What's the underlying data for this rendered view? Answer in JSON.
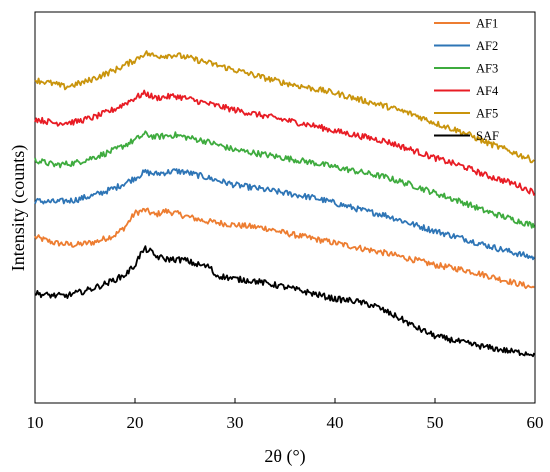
{
  "chart_data": {
    "type": "line",
    "xlabel": "2θ (°)",
    "ylabel": "Intensity (counts)",
    "xlim": [
      10,
      60
    ],
    "xticks": [
      10,
      20,
      30,
      40,
      50,
      60
    ],
    "y_tick_labels": false,
    "grid": false,
    "legend_position": "top-right",
    "y_units": "relative intensity with vertical stacking offsets (arbitrary units)",
    "series": [
      {
        "name": "AF1",
        "color": "#ED7D31",
        "points": [
          [
            10,
            166
          ],
          [
            12,
            160
          ],
          [
            14,
            158
          ],
          [
            16,
            161
          ],
          [
            18,
            168
          ],
          [
            19,
            176
          ],
          [
            20,
            190
          ],
          [
            21,
            193
          ],
          [
            22,
            188
          ],
          [
            23,
            192
          ],
          [
            24,
            190
          ],
          [
            25,
            187
          ],
          [
            27,
            182
          ],
          [
            30,
            178
          ],
          [
            33,
            175
          ],
          [
            35,
            170
          ],
          [
            38,
            164
          ],
          [
            40,
            160
          ],
          [
            43,
            154
          ],
          [
            45,
            150
          ],
          [
            48,
            143
          ],
          [
            50,
            138
          ],
          [
            53,
            133
          ],
          [
            55,
            128
          ],
          [
            58,
            120
          ],
          [
            60,
            115
          ]
        ]
      },
      {
        "name": "AF2",
        "color": "#2E75B6",
        "points": [
          [
            10,
            202
          ],
          [
            12,
            201
          ],
          [
            14,
            203
          ],
          [
            16,
            208
          ],
          [
            18,
            215
          ],
          [
            20,
            225
          ],
          [
            21,
            231
          ],
          [
            22,
            229
          ],
          [
            24,
            232
          ],
          [
            25,
            231
          ],
          [
            27,
            226
          ],
          [
            30,
            218
          ],
          [
            32,
            215
          ],
          [
            35,
            210
          ],
          [
            38,
            205
          ],
          [
            40,
            200
          ],
          [
            43,
            192
          ],
          [
            45,
            188
          ],
          [
            48,
            178
          ],
          [
            50,
            172
          ],
          [
            53,
            164
          ],
          [
            55,
            158
          ],
          [
            58,
            150
          ],
          [
            60,
            145
          ]
        ]
      },
      {
        "name": "AF3",
        "color": "#3EAB3E",
        "points": [
          [
            10,
            243
          ],
          [
            12,
            238
          ],
          [
            14,
            240
          ],
          [
            16,
            246
          ],
          [
            18,
            253
          ],
          [
            20,
            263
          ],
          [
            21,
            269
          ],
          [
            22,
            266
          ],
          [
            24,
            268
          ],
          [
            25,
            266
          ],
          [
            27,
            262
          ],
          [
            30,
            253
          ],
          [
            32,
            250
          ],
          [
            35,
            245
          ],
          [
            38,
            240
          ],
          [
            40,
            236
          ],
          [
            43,
            230
          ],
          [
            45,
            226
          ],
          [
            48,
            217
          ],
          [
            50,
            210
          ],
          [
            53,
            200
          ],
          [
            55,
            192
          ],
          [
            58,
            183
          ],
          [
            60,
            177
          ]
        ]
      },
      {
        "name": "AF4",
        "color": "#E81C24",
        "points": [
          [
            10,
            284
          ],
          [
            12,
            280
          ],
          [
            14,
            281
          ],
          [
            16,
            286
          ],
          [
            18,
            294
          ],
          [
            20,
            305
          ],
          [
            21,
            310
          ],
          [
            22,
            305
          ],
          [
            24,
            307
          ],
          [
            25,
            305
          ],
          [
            27,
            300
          ],
          [
            30,
            293
          ],
          [
            32,
            289
          ],
          [
            35,
            283
          ],
          [
            38,
            277
          ],
          [
            40,
            272
          ],
          [
            43,
            266
          ],
          [
            45,
            262
          ],
          [
            48,
            252
          ],
          [
            50,
            245
          ],
          [
            53,
            236
          ],
          [
            55,
            228
          ],
          [
            58,
            219
          ],
          [
            60,
            210
          ]
        ]
      },
      {
        "name": "AF5",
        "color": "#C9940C",
        "points": [
          [
            10,
            323
          ],
          [
            12,
            319
          ],
          [
            13,
            316
          ],
          [
            15,
            321
          ],
          [
            18,
            333
          ],
          [
            20,
            343
          ],
          [
            21,
            350
          ],
          [
            22,
            347
          ],
          [
            24,
            348
          ],
          [
            25,
            346
          ],
          [
            27,
            341
          ],
          [
            30,
            333
          ],
          [
            33,
            325
          ],
          [
            35,
            320
          ],
          [
            38,
            314
          ],
          [
            40,
            310
          ],
          [
            43,
            302
          ],
          [
            45,
            297
          ],
          [
            48,
            288
          ],
          [
            50,
            280
          ],
          [
            53,
            270
          ],
          [
            55,
            261
          ],
          [
            58,
            250
          ],
          [
            60,
            242
          ]
        ]
      },
      {
        "name": "SAF",
        "color": "#000000",
        "points": [
          [
            10,
            110
          ],
          [
            11,
            108
          ],
          [
            13,
            107
          ],
          [
            15,
            112
          ],
          [
            17,
            119
          ],
          [
            19,
            128
          ],
          [
            20,
            138
          ],
          [
            20.5,
            148
          ],
          [
            21,
            154
          ],
          [
            21.5,
            152
          ],
          [
            22,
            147
          ],
          [
            23,
            144
          ],
          [
            25,
            143
          ],
          [
            26,
            139
          ],
          [
            27,
            137
          ],
          [
            27.5,
            136
          ],
          [
            28,
            128
          ],
          [
            30,
            124
          ],
          [
            32,
            122
          ],
          [
            35,
            116
          ],
          [
            38,
            109
          ],
          [
            40,
            104
          ],
          [
            42,
            102
          ],
          [
            44,
            97
          ],
          [
            45,
            92
          ],
          [
            47,
            82
          ],
          [
            48,
            76
          ],
          [
            50,
            67
          ],
          [
            53,
            60
          ],
          [
            55,
            56
          ],
          [
            58,
            51
          ],
          [
            60,
            49
          ]
        ]
      }
    ]
  }
}
